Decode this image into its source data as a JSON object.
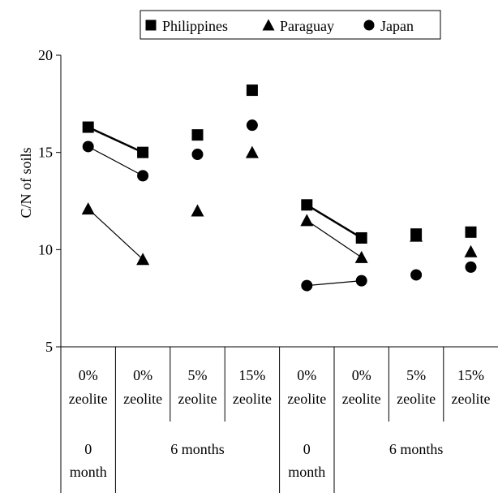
{
  "chart_data": {
    "type": "scatter",
    "ylabel": "C/N of soils",
    "ylim": [
      5,
      20
    ],
    "yticks": [
      5,
      10,
      15,
      20
    ],
    "categories": [
      {
        "pct": "0%",
        "word": "zeolite"
      },
      {
        "pct": "0%",
        "word": "zeolite"
      },
      {
        "pct": "5%",
        "word": "zeolite"
      },
      {
        "pct": "15%",
        "word": "zeolite"
      },
      {
        "pct": "0%",
        "word": "zeolite"
      },
      {
        "pct": "0%",
        "word": "zeolite"
      },
      {
        "pct": "5%",
        "word": "zeolite"
      },
      {
        "pct": "15%",
        "word": "zeolite"
      }
    ],
    "period_groups": [
      {
        "line1": "0",
        "line2": "month"
      },
      {
        "line1": "6 months",
        "line2": ""
      },
      {
        "line1": "0",
        "line2": "month"
      },
      {
        "line1": "6 months",
        "line2": ""
      }
    ],
    "legend_position": "top",
    "series": [
      {
        "name": "Philippines",
        "marker": "square",
        "values": [
          16.3,
          15.0,
          15.9,
          18.2,
          12.3,
          10.6,
          10.8,
          10.9
        ]
      },
      {
        "name": "Paraguay",
        "marker": "triangle",
        "values": [
          12.1,
          9.5,
          12.0,
          15.0,
          11.5,
          9.6,
          10.7,
          9.9
        ]
      },
      {
        "name": "Japan",
        "marker": "circle",
        "values": [
          15.3,
          13.8,
          14.9,
          16.4,
          8.15,
          8.4,
          8.7,
          9.1
        ]
      }
    ],
    "connected_pairs": [
      [
        0,
        1
      ],
      [
        4,
        5
      ]
    ]
  }
}
